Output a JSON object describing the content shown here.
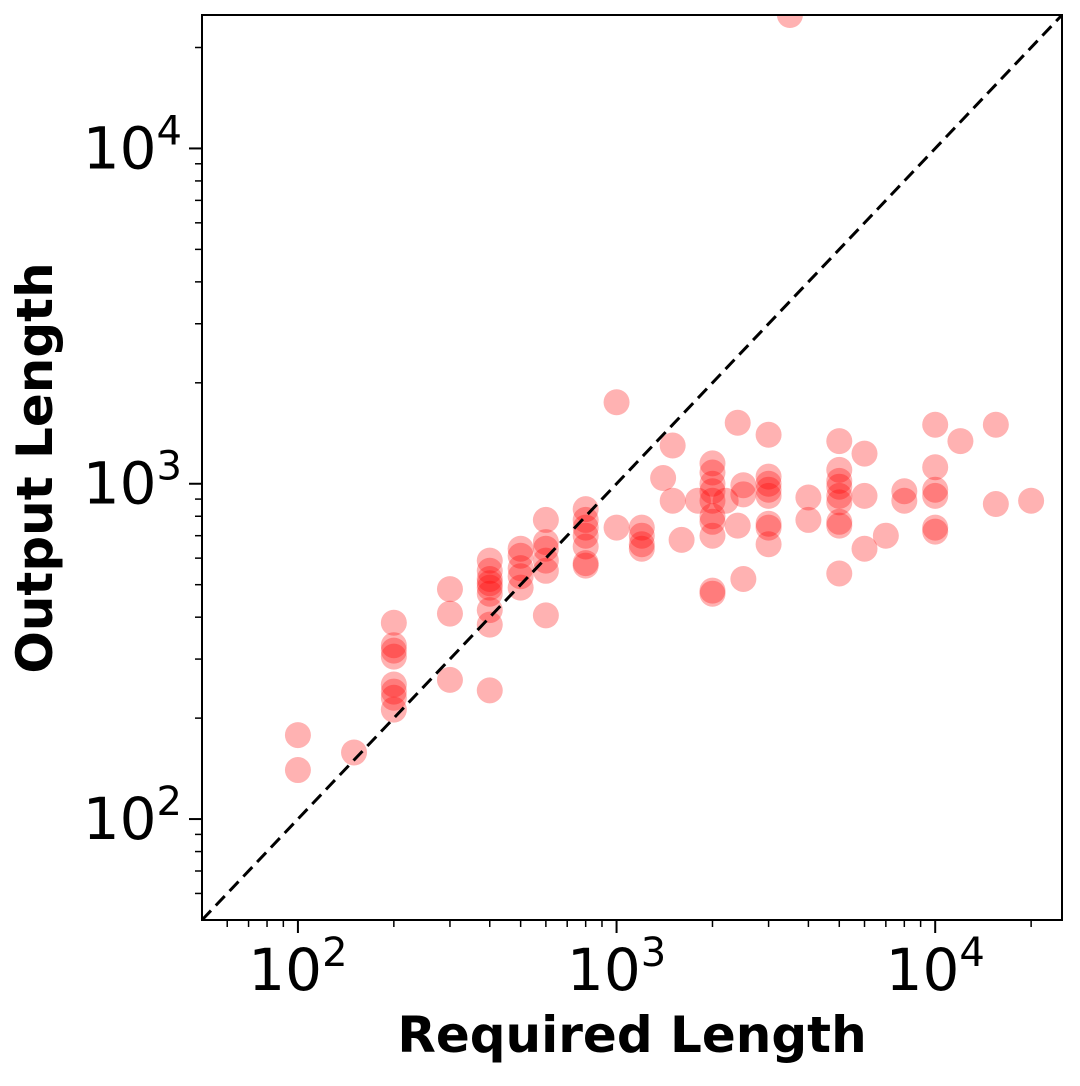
{
  "chart_data": {
    "type": "scatter",
    "xlabel": "Required Length",
    "ylabel": "Output Length",
    "xscale": "log",
    "yscale": "log",
    "xlim": [
      50,
      25000
    ],
    "ylim": [
      50,
      25000
    ],
    "x_ticks": [
      {
        "value": 100,
        "base": "10",
        "exp": "2"
      },
      {
        "value": 1000,
        "base": "10",
        "exp": "3"
      },
      {
        "value": 10000,
        "base": "10",
        "exp": "4"
      }
    ],
    "y_ticks": [
      {
        "value": 100,
        "base": "10",
        "exp": "2"
      },
      {
        "value": 1000,
        "base": "10",
        "exp": "3"
      },
      {
        "value": 10000,
        "base": "10",
        "exp": "4"
      }
    ],
    "reference_line": {
      "style": "dashed",
      "color": "#000000",
      "label": "y = x"
    },
    "marker_color": "#ff0000",
    "marker_alpha": 0.3,
    "grid": false,
    "points": [
      {
        "x": 100,
        "y": 178
      },
      {
        "x": 100,
        "y": 140
      },
      {
        "x": 150,
        "y": 158
      },
      {
        "x": 200,
        "y": 385
      },
      {
        "x": 200,
        "y": 330
      },
      {
        "x": 200,
        "y": 318
      },
      {
        "x": 200,
        "y": 305
      },
      {
        "x": 200,
        "y": 252
      },
      {
        "x": 200,
        "y": 240
      },
      {
        "x": 200,
        "y": 230
      },
      {
        "x": 200,
        "y": 212
      },
      {
        "x": 300,
        "y": 485
      },
      {
        "x": 300,
        "y": 410
      },
      {
        "x": 300,
        "y": 260
      },
      {
        "x": 400,
        "y": 590
      },
      {
        "x": 400,
        "y": 550
      },
      {
        "x": 400,
        "y": 520
      },
      {
        "x": 400,
        "y": 505
      },
      {
        "x": 400,
        "y": 490
      },
      {
        "x": 400,
        "y": 470
      },
      {
        "x": 400,
        "y": 420
      },
      {
        "x": 400,
        "y": 380
      },
      {
        "x": 400,
        "y": 242
      },
      {
        "x": 500,
        "y": 640
      },
      {
        "x": 500,
        "y": 610
      },
      {
        "x": 500,
        "y": 560
      },
      {
        "x": 500,
        "y": 530
      },
      {
        "x": 500,
        "y": 490
      },
      {
        "x": 600,
        "y": 780
      },
      {
        "x": 600,
        "y": 670
      },
      {
        "x": 600,
        "y": 640
      },
      {
        "x": 600,
        "y": 590
      },
      {
        "x": 600,
        "y": 550
      },
      {
        "x": 600,
        "y": 405
      },
      {
        "x": 800,
        "y": 840
      },
      {
        "x": 800,
        "y": 780
      },
      {
        "x": 800,
        "y": 740
      },
      {
        "x": 800,
        "y": 700
      },
      {
        "x": 800,
        "y": 650
      },
      {
        "x": 800,
        "y": 580
      },
      {
        "x": 800,
        "y": 570
      },
      {
        "x": 1000,
        "y": 1750
      },
      {
        "x": 1000,
        "y": 740
      },
      {
        "x": 1200,
        "y": 740
      },
      {
        "x": 1200,
        "y": 700
      },
      {
        "x": 1200,
        "y": 660
      },
      {
        "x": 1200,
        "y": 640
      },
      {
        "x": 1400,
        "y": 1040
      },
      {
        "x": 1500,
        "y": 1300
      },
      {
        "x": 1500,
        "y": 890
      },
      {
        "x": 1600,
        "y": 680
      },
      {
        "x": 1800,
        "y": 890
      },
      {
        "x": 2000,
        "y": 1150
      },
      {
        "x": 2000,
        "y": 1080
      },
      {
        "x": 2000,
        "y": 1000
      },
      {
        "x": 2000,
        "y": 950
      },
      {
        "x": 2000,
        "y": 890
      },
      {
        "x": 2000,
        "y": 800
      },
      {
        "x": 2000,
        "y": 770
      },
      {
        "x": 2000,
        "y": 700
      },
      {
        "x": 2000,
        "y": 480
      },
      {
        "x": 2000,
        "y": 470
      },
      {
        "x": 2200,
        "y": 890
      },
      {
        "x": 2400,
        "y": 1520
      },
      {
        "x": 2400,
        "y": 750
      },
      {
        "x": 2500,
        "y": 990
      },
      {
        "x": 2500,
        "y": 930
      },
      {
        "x": 2500,
        "y": 520
      },
      {
        "x": 3000,
        "y": 1400
      },
      {
        "x": 3000,
        "y": 1050
      },
      {
        "x": 3000,
        "y": 1000
      },
      {
        "x": 3000,
        "y": 960
      },
      {
        "x": 3000,
        "y": 920
      },
      {
        "x": 3000,
        "y": 760
      },
      {
        "x": 3000,
        "y": 740
      },
      {
        "x": 3000,
        "y": 660
      },
      {
        "x": 3500,
        "y": 25000
      },
      {
        "x": 4000,
        "y": 910
      },
      {
        "x": 4000,
        "y": 780
      },
      {
        "x": 5000,
        "y": 1340
      },
      {
        "x": 5000,
        "y": 1100
      },
      {
        "x": 5000,
        "y": 1020
      },
      {
        "x": 5000,
        "y": 980
      },
      {
        "x": 5000,
        "y": 920
      },
      {
        "x": 5000,
        "y": 880
      },
      {
        "x": 5000,
        "y": 770
      },
      {
        "x": 5000,
        "y": 750
      },
      {
        "x": 5000,
        "y": 540
      },
      {
        "x": 6000,
        "y": 1230
      },
      {
        "x": 6000,
        "y": 920
      },
      {
        "x": 6000,
        "y": 640
      },
      {
        "x": 7000,
        "y": 700
      },
      {
        "x": 8000,
        "y": 950
      },
      {
        "x": 8000,
        "y": 890
      },
      {
        "x": 10000,
        "y": 1500
      },
      {
        "x": 10000,
        "y": 1120
      },
      {
        "x": 10000,
        "y": 960
      },
      {
        "x": 10000,
        "y": 920
      },
      {
        "x": 10000,
        "y": 740
      },
      {
        "x": 10000,
        "y": 720
      },
      {
        "x": 12000,
        "y": 1340
      },
      {
        "x": 15500,
        "y": 1500
      },
      {
        "x": 15500,
        "y": 870
      },
      {
        "x": 20000,
        "y": 890
      }
    ]
  }
}
